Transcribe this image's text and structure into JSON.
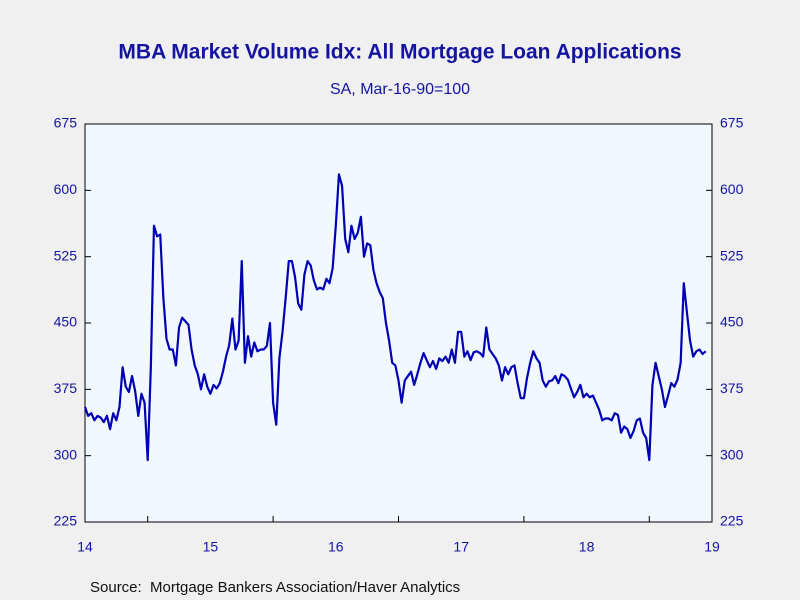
{
  "chart_data": {
    "type": "line",
    "title": "MBA Market Volume Idx: All Mortgage Loan Applications",
    "subtitle": "SA, Mar-16-90=100",
    "source": "Source:  Mortgage Bankers Association/Haver Analytics",
    "xlim": [
      2014.5,
      2019.5
    ],
    "xticks": [
      {
        "value": 2014.5,
        "label": "14"
      },
      {
        "value": 2015.5,
        "label": "15"
      },
      {
        "value": 2016.5,
        "label": "16"
      },
      {
        "value": 2017.5,
        "label": "17"
      },
      {
        "value": 2018.5,
        "label": "18"
      },
      {
        "value": 2019.5,
        "label": "19"
      }
    ],
    "xminor": [
      2015,
      2016,
      2017,
      2018,
      2019
    ],
    "ylim": [
      225,
      675
    ],
    "yticks": [
      225,
      300,
      375,
      450,
      525,
      600,
      675
    ],
    "x": [
      2014.5,
      2014.525,
      2014.55,
      2014.575,
      2014.6,
      2014.625,
      2014.65,
      2014.675,
      2014.7,
      2014.725,
      2014.75,
      2014.775,
      2014.8,
      2014.825,
      2014.85,
      2014.875,
      2014.9,
      2014.925,
      2014.95,
      2014.975,
      2015,
      2015.025,
      2015.05,
      2015.075,
      2015.1,
      2015.125,
      2015.15,
      2015.175,
      2015.2,
      2015.225,
      2015.25,
      2015.275,
      2015.3,
      2015.325,
      2015.35,
      2015.375,
      2015.4,
      2015.425,
      2015.45,
      2015.475,
      2015.5,
      2015.525,
      2015.55,
      2015.575,
      2015.6,
      2015.625,
      2015.65,
      2015.675,
      2015.7,
      2015.725,
      2015.75,
      2015.775,
      2015.8,
      2015.825,
      2015.85,
      2015.875,
      2015.9,
      2015.925,
      2015.95,
      2015.975,
      2016,
      2016.025,
      2016.05,
      2016.075,
      2016.1,
      2016.125,
      2016.15,
      2016.175,
      2016.2,
      2016.225,
      2016.25,
      2016.275,
      2016.3,
      2016.325,
      2016.35,
      2016.375,
      2016.4,
      2016.425,
      2016.45,
      2016.475,
      2016.5,
      2016.525,
      2016.55,
      2016.575,
      2016.6,
      2016.625,
      2016.65,
      2016.675,
      2016.7,
      2016.725,
      2016.75,
      2016.775,
      2016.8,
      2016.825,
      2016.85,
      2016.875,
      2016.9,
      2016.925,
      2016.95,
      2016.975,
      2017,
      2017.025,
      2017.05,
      2017.075,
      2017.1,
      2017.125,
      2017.15,
      2017.175,
      2017.2,
      2017.225,
      2017.25,
      2017.275,
      2017.3,
      2017.325,
      2017.35,
      2017.375,
      2017.4,
      2017.425,
      2017.45,
      2017.475,
      2017.5,
      2017.525,
      2017.55,
      2017.575,
      2017.6,
      2017.625,
      2017.65,
      2017.675,
      2017.7,
      2017.725,
      2017.75,
      2017.775,
      2017.8,
      2017.825,
      2017.85,
      2017.875,
      2017.9,
      2017.925,
      2017.95,
      2017.975,
      2018,
      2018.025,
      2018.05,
      2018.075,
      2018.1,
      2018.125,
      2018.15,
      2018.175,
      2018.2,
      2018.225,
      2018.25,
      2018.275,
      2018.3,
      2018.325,
      2018.35,
      2018.375,
      2018.4,
      2018.425,
      2018.45,
      2018.475,
      2018.5,
      2018.525,
      2018.55,
      2018.575,
      2018.6,
      2018.625,
      2018.65,
      2018.675,
      2018.7,
      2018.725,
      2018.75,
      2018.775,
      2018.8,
      2018.825,
      2018.85,
      2018.875,
      2018.9,
      2018.925,
      2018.95,
      2018.975,
      2019,
      2019.025,
      2019.05,
      2019.075,
      2019.1,
      2019.125,
      2019.15,
      2019.175,
      2019.2,
      2019.225,
      2019.25,
      2019.275,
      2019.3,
      2019.325,
      2019.35,
      2019.375,
      2019.4,
      2019.425,
      2019.45
    ],
    "series": [
      {
        "color": "#0000b4",
        "values": [
          355,
          345,
          348,
          340,
          345,
          343,
          338,
          345,
          330,
          348,
          340,
          355,
          400,
          378,
          372,
          390,
          373,
          345,
          370,
          360,
          295,
          400,
          560,
          548,
          550,
          478,
          432,
          420,
          420,
          402,
          445,
          456,
          452,
          448,
          420,
          402,
          392,
          375,
          392,
          378,
          370,
          380,
          376,
          382,
          395,
          412,
          425,
          455,
          420,
          430,
          520,
          405,
          435,
          412,
          428,
          418,
          420,
          420,
          424,
          450,
          360,
          335,
          410,
          440,
          478,
          520,
          520,
          502,
          472,
          465,
          505,
          520,
          515,
          498,
          488,
          490,
          488,
          500,
          495,
          512,
          560,
          618,
          605,
          545,
          530,
          560,
          545,
          552,
          570,
          525,
          540,
          538,
          510,
          495,
          485,
          478,
          450,
          430,
          405,
          402,
          385,
          360,
          385,
          390,
          395,
          380,
          392,
          405,
          416,
          408,
          400,
          407,
          398,
          410,
          407,
          412,
          405,
          420,
          405,
          440,
          440,
          412,
          418,
          408,
          417,
          418,
          416,
          412,
          445,
          420,
          415,
          410,
          402,
          385,
          400,
          392,
          400,
          402,
          382,
          365,
          365,
          388,
          405,
          418,
          410,
          405,
          385,
          378,
          384,
          385,
          390,
          382,
          392,
          390,
          386,
          376,
          366,
          372,
          380,
          366,
          370,
          366,
          368,
          360,
          352,
          340,
          342,
          342,
          340,
          348,
          346,
          326,
          333,
          330,
          320,
          328,
          340,
          342,
          326,
          320,
          295,
          380,
          405,
          390,
          375,
          355,
          368,
          382,
          378,
          386,
          405,
          495,
          462,
          430,
          412,
          418,
          420,
          415,
          418
        ]
      }
    ]
  }
}
